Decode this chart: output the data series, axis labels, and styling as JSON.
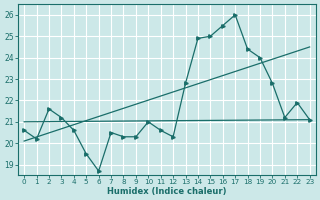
{
  "xlabel": "Humidex (Indice chaleur)",
  "bg_color": "#cce8e8",
  "grid_color": "#ffffff",
  "line_color": "#1a6e6a",
  "xlim": [
    -0.5,
    23.5
  ],
  "ylim": [
    18.5,
    26.5
  ],
  "yticks": [
    19,
    20,
    21,
    22,
    23,
    24,
    25,
    26
  ],
  "xticks": [
    0,
    1,
    2,
    3,
    4,
    5,
    6,
    7,
    8,
    9,
    10,
    11,
    12,
    13,
    14,
    15,
    16,
    17,
    18,
    19,
    20,
    21,
    22,
    23
  ],
  "data_x": [
    0,
    1,
    2,
    3,
    4,
    5,
    6,
    7,
    8,
    9,
    10,
    11,
    12,
    13,
    14,
    15,
    16,
    17,
    18,
    19,
    20,
    21,
    22,
    23
  ],
  "data_y": [
    20.6,
    20.2,
    21.6,
    21.2,
    20.6,
    19.5,
    18.7,
    20.5,
    20.3,
    20.3,
    21.0,
    20.6,
    20.3,
    22.8,
    24.9,
    25.0,
    25.5,
    26.0,
    24.4,
    24.0,
    22.8,
    21.2,
    21.9,
    21.1
  ],
  "trend1_x": [
    0,
    23
  ],
  "trend1_y": [
    20.1,
    24.5
  ],
  "trend2_x": [
    0,
    23
  ],
  "trend2_y": [
    21.0,
    21.1
  ],
  "xlabel_fontsize": 6.0,
  "tick_fontsize": 5.2,
  "ytick_fontsize": 5.5
}
